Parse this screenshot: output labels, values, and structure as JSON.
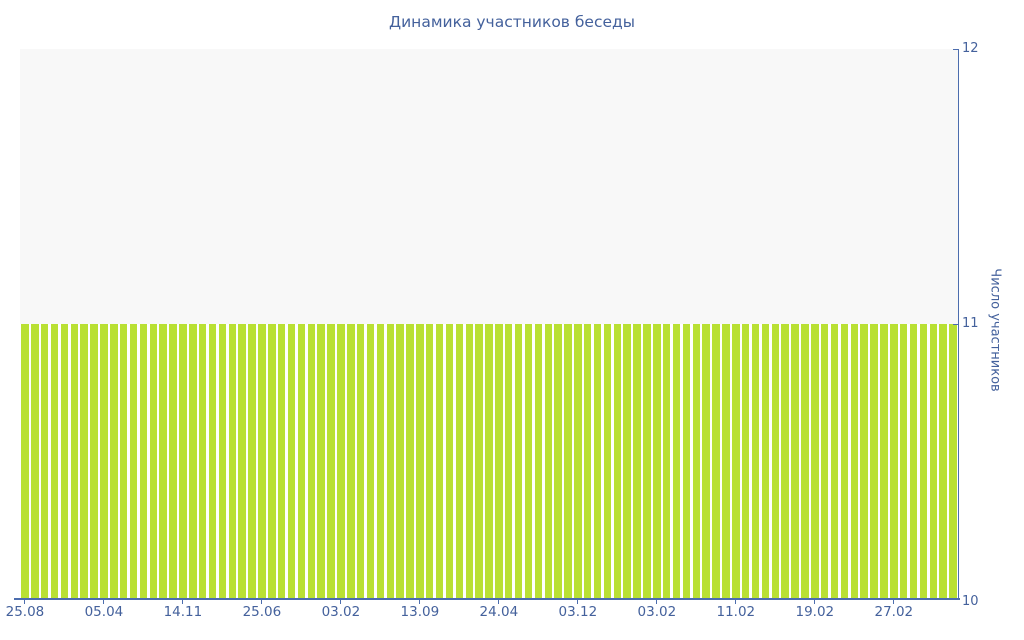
{
  "title": "Динамика участников беседы",
  "chart_data": {
    "type": "bar",
    "title": "Динамика участников беседы",
    "xlabel": "",
    "ylabel": "Число участников",
    "ylim": [
      10,
      12
    ],
    "yticks": [
      10,
      11,
      12
    ],
    "x_tick_labels": [
      "25.08",
      "05.04",
      "14.11",
      "25.06",
      "03.02",
      "13.09",
      "24.04",
      "03.12",
      "03.02",
      "11.02",
      "19.02",
      "27.02"
    ],
    "bars_count": 95,
    "bar_value": 11,
    "label_every_n_bars": 8,
    "grid": false,
    "legend": false,
    "y_axis_position": "right",
    "colors": {
      "bar": "#b9e033",
      "upper_area": "#f8f8f8",
      "axis": "#4c6dae",
      "text": "#44619c",
      "background": "#ffffff"
    }
  }
}
